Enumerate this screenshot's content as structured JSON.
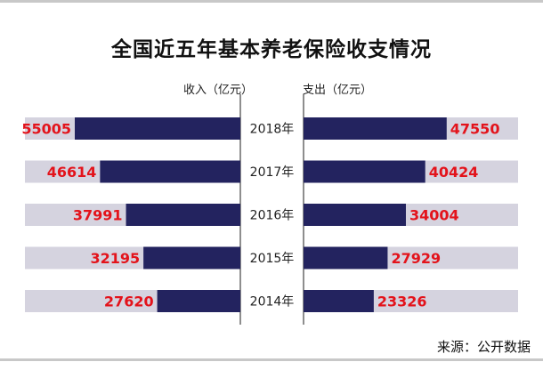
{
  "title": "全国近五年基本养老保险收支情况",
  "source": "来源：公开数据",
  "chart_data": {
    "type": "bar",
    "title": "全国近五年基本养老保险收支情况",
    "categories": [
      "2018年",
      "2017年",
      "2016年",
      "2015年",
      "2014年"
    ],
    "series": [
      {
        "name": "收入（亿元）",
        "values": [
          55005,
          46614,
          37991,
          32195,
          27620
        ]
      },
      {
        "name": "支出（亿元）",
        "values": [
          47550,
          40424,
          34004,
          27929,
          23326
        ]
      }
    ],
    "xlim": [
      0,
      62000
    ],
    "orientation": "horizontal-butterfly",
    "grid": false
  },
  "colors": {
    "bar": "#23235f",
    "track": "#d5d3df",
    "value_text": "#e3131b",
    "divider": "#444444"
  }
}
